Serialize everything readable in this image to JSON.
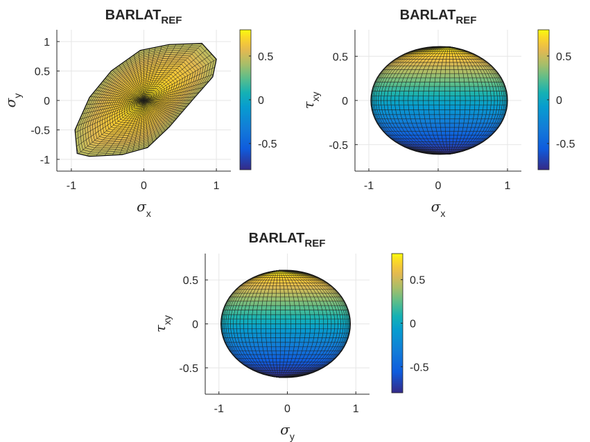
{
  "chart_data": [
    {
      "type": "surface",
      "title": "BARLAT",
      "title_subscript": "REF",
      "xlabel_symbol": "σ",
      "xlabel_subscript": "x",
      "ylabel_symbol": "σ",
      "ylabel_subscript": "y",
      "xlim": [
        -1.2,
        1.2
      ],
      "ylim": [
        -1.2,
        1.2
      ],
      "xticks": [
        "-1",
        "0",
        "1"
      ],
      "yticks": [
        "1",
        "0.5",
        "0",
        "-0.5",
        "-1"
      ],
      "grid": true,
      "colorbar": {
        "range": [
          -0.8,
          0.8
        ],
        "ticks": [
          "0.5",
          "0",
          "-0.5"
        ],
        "colormap": "parula"
      },
      "shape": "yield-locus",
      "outline": [
        [
          -0.92,
          -0.9
        ],
        [
          -0.95,
          -0.5
        ],
        [
          -0.75,
          0.05
        ],
        [
          -0.45,
          0.5
        ],
        [
          -0.05,
          0.85
        ],
        [
          0.35,
          0.95
        ],
        [
          0.8,
          0.97
        ],
        [
          1.0,
          0.7
        ],
        [
          0.95,
          0.4
        ],
        [
          0.7,
          0.05
        ],
        [
          0.35,
          -0.45
        ],
        [
          0.05,
          -0.8
        ],
        [
          -0.3,
          -0.92
        ],
        [
          -0.75,
          -0.95
        ]
      ],
      "center_value": 0.75,
      "edge_value": 0.45
    },
    {
      "type": "surface",
      "title": "BARLAT",
      "title_subscript": "REF",
      "xlabel_symbol": "σ",
      "xlabel_subscript": "x",
      "ylabel_symbol": "τ",
      "ylabel_subscript": "xy",
      "xlim": [
        -1.2,
        1.2
      ],
      "ylim": [
        -0.8,
        0.8
      ],
      "xticks": [
        "-1",
        "0",
        "1"
      ],
      "yticks": [
        "0.5",
        "0",
        "-0.5"
      ],
      "grid": true,
      "colorbar": {
        "range": [
          -0.8,
          0.8
        ],
        "ticks": [
          "0.5",
          "0",
          "-0.5"
        ],
        "colormap": "parula"
      },
      "shape": "ellipsoid",
      "x_extent": [
        -0.97,
        1.0
      ],
      "y_extent": [
        -0.61,
        0.61
      ],
      "pole_x": 0.15
    },
    {
      "type": "surface",
      "title": "BARLAT",
      "title_subscript": "REF",
      "xlabel_symbol": "σ",
      "xlabel_subscript": "y",
      "ylabel_symbol": "τ",
      "ylabel_subscript": "xy",
      "xlim": [
        -1.2,
        1.2
      ],
      "ylim": [
        -0.8,
        0.8
      ],
      "xticks": [
        "-1",
        "0",
        "1"
      ],
      "yticks": [
        "0.5",
        "0",
        "-0.5"
      ],
      "grid": true,
      "colorbar": {
        "range": [
          -0.8,
          0.8
        ],
        "ticks": [
          "0.5",
          "0",
          "-0.5"
        ],
        "colormap": "parula"
      },
      "shape": "ellipsoid",
      "x_extent": [
        -0.97,
        0.92
      ],
      "y_extent": [
        -0.61,
        0.61
      ],
      "pole_x": -0.1
    }
  ]
}
